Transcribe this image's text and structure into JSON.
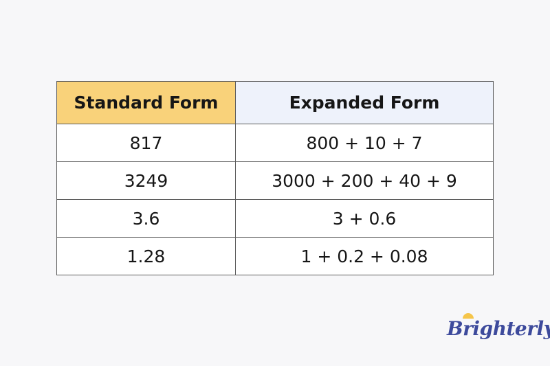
{
  "table": {
    "headers": [
      "Standard Form",
      "Expanded Form"
    ],
    "rows": [
      [
        "817",
        "800 + 10 + 7"
      ],
      [
        "3249",
        "3000 + 200 + 40 + 9"
      ],
      [
        "3.6",
        "3 + 0.6"
      ],
      [
        "1.28",
        "1 + 0.2 + 0.08"
      ]
    ],
    "header_colors": [
      "#f9d27a",
      "#eef2fb"
    ]
  },
  "logo": {
    "text": "Brighterly"
  }
}
